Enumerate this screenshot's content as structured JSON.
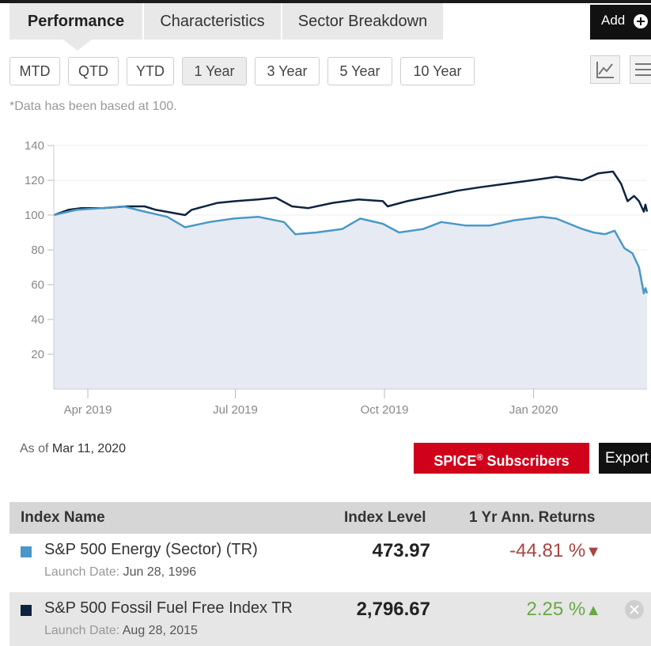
{
  "tabs": {
    "performance": "Performance",
    "characteristics": "Characteristics",
    "sector_breakdown": "Sector Breakdown",
    "add_label": "Add"
  },
  "periods": [
    "MTD",
    "QTD",
    "YTD",
    "1 Year",
    "3 Year",
    "5 Year",
    "10 Year"
  ],
  "active_period": "1 Year",
  "note": "*Data has been based at 100.",
  "chart_data": {
    "type": "line",
    "ylim": [
      0,
      140
    ],
    "y_ticks": [
      "140",
      "120",
      "100",
      "80",
      "60",
      "40",
      "20"
    ],
    "x_ticks": [
      "Apr 2019",
      "Jul 2019",
      "Oct 2019",
      "Jan 2020"
    ],
    "x_range": [
      "2019-03-11",
      "2020-03-11"
    ],
    "series": [
      {
        "name": "S&P 500 Fossil Fuel Free Index TR",
        "color": "#0d2340",
        "points": [
          [
            "2019-03-11",
            100
          ],
          [
            "2019-03-20",
            103
          ],
          [
            "2019-03-28",
            104
          ],
          [
            "2019-04-10",
            104
          ],
          [
            "2019-04-25",
            105
          ],
          [
            "2019-05-06",
            105
          ],
          [
            "2019-05-13",
            103
          ],
          [
            "2019-05-31",
            100
          ],
          [
            "2019-06-04",
            103
          ],
          [
            "2019-06-20",
            107
          ],
          [
            "2019-07-01",
            108
          ],
          [
            "2019-07-15",
            109
          ],
          [
            "2019-07-26",
            110
          ],
          [
            "2019-08-05",
            105
          ],
          [
            "2019-08-15",
            104
          ],
          [
            "2019-08-30",
            107
          ],
          [
            "2019-09-15",
            109
          ],
          [
            "2019-09-30",
            108
          ],
          [
            "2019-10-03",
            105
          ],
          [
            "2019-10-15",
            108
          ],
          [
            "2019-10-31",
            111
          ],
          [
            "2019-11-15",
            114
          ],
          [
            "2019-11-29",
            116
          ],
          [
            "2019-12-15",
            118
          ],
          [
            "2019-12-31",
            120
          ],
          [
            "2020-01-15",
            122
          ],
          [
            "2020-01-31",
            120
          ],
          [
            "2020-02-10",
            124
          ],
          [
            "2020-02-19",
            125
          ],
          [
            "2020-02-24",
            118
          ],
          [
            "2020-02-28",
            108
          ],
          [
            "2020-03-03",
            111
          ],
          [
            "2020-03-06",
            108
          ],
          [
            "2020-03-09",
            102
          ],
          [
            "2020-03-10",
            106
          ],
          [
            "2020-03-11",
            102
          ]
        ]
      },
      {
        "name": "S&P 500 Energy (Sector) (TR)",
        "color": "#4a98c7",
        "points": [
          [
            "2019-03-11",
            100
          ],
          [
            "2019-03-25",
            103
          ],
          [
            "2019-04-10",
            104
          ],
          [
            "2019-04-23",
            105
          ],
          [
            "2019-05-06",
            102
          ],
          [
            "2019-05-20",
            99
          ],
          [
            "2019-05-31",
            93
          ],
          [
            "2019-06-15",
            96
          ],
          [
            "2019-06-30",
            98
          ],
          [
            "2019-07-15",
            99
          ],
          [
            "2019-07-31",
            96
          ],
          [
            "2019-08-07",
            89
          ],
          [
            "2019-08-20",
            90
          ],
          [
            "2019-09-05",
            92
          ],
          [
            "2019-09-16",
            98
          ],
          [
            "2019-09-30",
            95
          ],
          [
            "2019-10-10",
            90
          ],
          [
            "2019-10-25",
            92
          ],
          [
            "2019-11-05",
            96
          ],
          [
            "2019-11-20",
            94
          ],
          [
            "2019-12-05",
            94
          ],
          [
            "2019-12-20",
            97
          ],
          [
            "2020-01-06",
            99
          ],
          [
            "2020-01-15",
            98
          ],
          [
            "2020-01-31",
            92
          ],
          [
            "2020-02-07",
            90
          ],
          [
            "2020-02-14",
            89
          ],
          [
            "2020-02-20",
            91
          ],
          [
            "2020-02-26",
            81
          ],
          [
            "2020-03-02",
            78
          ],
          [
            "2020-03-06",
            70
          ],
          [
            "2020-03-09",
            55
          ],
          [
            "2020-03-10",
            58
          ],
          [
            "2020-03-11",
            55
          ]
        ]
      }
    ]
  },
  "as_of_label": "As of",
  "as_of_date": "Mar 11, 2020",
  "spice_label": "SPICE",
  "spice_sup": "®",
  "spice_suffix": " Subscribers",
  "export_label": "Export",
  "table": {
    "headers": {
      "name": "Index Name",
      "level": "Index Level",
      "returns": "1 Yr Ann. Returns"
    },
    "launch_label": "Launch Date:",
    "rows": [
      {
        "color": "#4a98c7",
        "name": "S&P 500 Energy (Sector) (TR)",
        "launch_date": "Jun 28, 1996",
        "level": "473.97",
        "returns": "-44.81 %",
        "arrow": "▼"
      },
      {
        "color": "#0d2340",
        "name": "S&P 500 Fossil Fuel Free Index TR",
        "launch_date": "Aug 28, 2015",
        "level": "2,796.67",
        "returns": "2.25 %",
        "arrow": "▲"
      }
    ]
  },
  "icons": {
    "line_chart": "line-chart-icon",
    "list": "list-icon",
    "add": "plus-circle-icon",
    "remove": "close-circle-icon"
  }
}
